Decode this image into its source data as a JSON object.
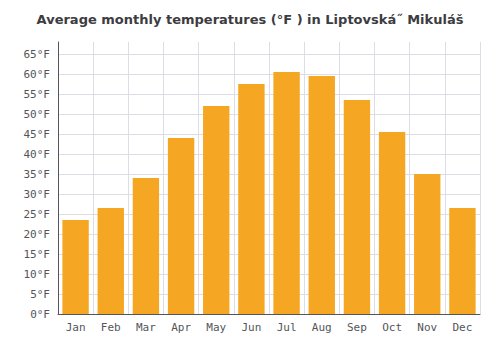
{
  "chart_data": {
    "type": "bar",
    "title": "Average monthly temperatures (°F ) in Liptovská˝ Mikuláš",
    "categories": [
      "Jan",
      "Feb",
      "Mar",
      "Apr",
      "May",
      "Jun",
      "Jul",
      "Aug",
      "Sep",
      "Oct",
      "Nov",
      "Dec"
    ],
    "values": [
      23.5,
      26.5,
      34.0,
      44.0,
      52.0,
      57.5,
      60.5,
      59.5,
      53.5,
      45.5,
      35.0,
      26.5
    ],
    "color": "#F5A623",
    "ylim": [
      0,
      68
    ],
    "yticks": [
      {
        "value": 0,
        "label": "0°F"
      },
      {
        "value": 5,
        "label": "5°F"
      },
      {
        "value": 10,
        "label": "10°F"
      },
      {
        "value": 15,
        "label": "15°F"
      },
      {
        "value": 20,
        "label": "20°F"
      },
      {
        "value": 25,
        "label": "25°F"
      },
      {
        "value": 30,
        "label": "30°F"
      },
      {
        "value": 35,
        "label": "35°F"
      },
      {
        "value": 40,
        "label": "40°F"
      },
      {
        "value": 45,
        "label": "45°F"
      },
      {
        "value": 50,
        "label": "50°F"
      },
      {
        "value": 55,
        "label": "55°F"
      },
      {
        "value": 60,
        "label": "60°F"
      },
      {
        "value": 65,
        "label": "65°F"
      }
    ],
    "grid": true
  }
}
